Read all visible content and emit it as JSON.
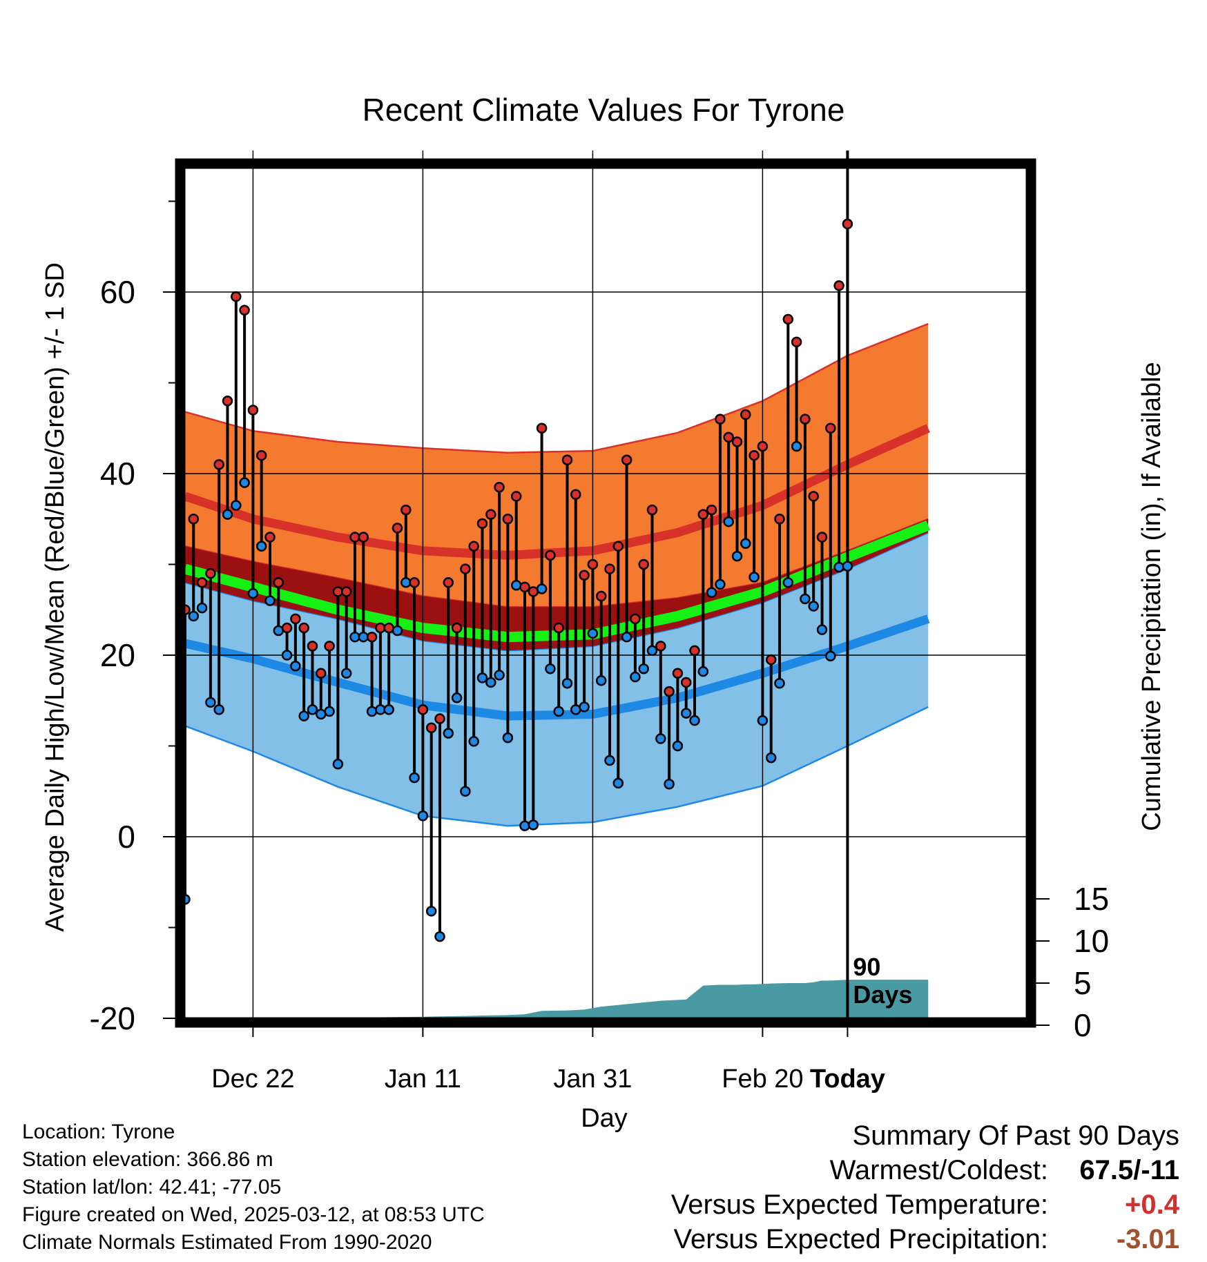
{
  "title": "Recent Climate Values For Tyrone",
  "chart_data": {
    "type": "line",
    "title": "Recent Climate Values For Tyrone",
    "xlabel": "Day",
    "ylabel": "Average Daily High/Low/Mean (Red/Blue/Green) +/- 1 SD",
    "y2label": "Cumulative Precipitation (in), If Available",
    "xlim_days": [
      -78,
      9.5
    ],
    "ylim": [
      -20,
      72
    ],
    "y2lim": [
      0,
      75
    ],
    "x_ticks": [
      {
        "day": -70,
        "label": "Dec 22"
      },
      {
        "day": -50,
        "label": "Jan 11"
      },
      {
        "day": -30,
        "label": "Jan 31"
      },
      {
        "day": -10,
        "label": "Feb 20"
      },
      {
        "day": 0,
        "label": "Today"
      }
    ],
    "y_ticks": [
      -20,
      0,
      20,
      40,
      60
    ],
    "y2_ticks": [
      0,
      5,
      10,
      15
    ],
    "today_marker": {
      "day": 0,
      "label_line1": "90",
      "label_line2": "Days"
    },
    "normals": {
      "days": [
        -78,
        -70,
        -60,
        -50,
        -40,
        -30,
        -20,
        -10,
        0,
        9.5
      ],
      "high_mean": [
        37.5,
        35,
        33,
        31.5,
        31,
        31.5,
        33.5,
        36.5,
        41,
        45
      ],
      "high_upper": [
        46.8,
        44.7,
        43.5,
        42.8,
        42.3,
        42.5,
        44.5,
        48,
        53,
        56.5
      ],
      "high_lower": [
        32,
        30.3,
        28.5,
        26.5,
        25.3,
        25.3,
        26.3,
        28,
        31.5,
        35
      ],
      "low_mean": [
        21.3,
        19.6,
        17,
        14.5,
        13.3,
        13.5,
        15.3,
        18,
        21,
        24
      ],
      "low_upper": [
        28,
        26,
        24,
        21.6,
        20.5,
        21,
        23,
        25.8,
        29.5,
        33.5
      ],
      "low_lower": [
        12.2,
        9.4,
        5.5,
        2.3,
        1.2,
        1.6,
        3.3,
        5.6,
        10,
        14.3
      ],
      "mean": [
        29.5,
        27.5,
        25,
        23,
        22,
        22.3,
        24.3,
        27,
        30.8,
        34.3
      ]
    },
    "series": [
      {
        "name": "High",
        "color": "#d8312a",
        "values": [
          31,
          22,
          30,
          34,
          42,
          48,
          38,
          34,
          29,
          24,
          13,
          25,
          35,
          28,
          29,
          41,
          48,
          59.5,
          58,
          47,
          42,
          33,
          28,
          23,
          24,
          23,
          21,
          18,
          21,
          27,
          27,
          33,
          33,
          22,
          23,
          23,
          34,
          36,
          28,
          14,
          12,
          13,
          28,
          23,
          29.5,
          32,
          34.5,
          35.5,
          38.5,
          35,
          37.5,
          27.5,
          27,
          45,
          31,
          23,
          41.5,
          37.7,
          28.8,
          30,
          26.5,
          29.5,
          32,
          41.5,
          24,
          30,
          36,
          21,
          16,
          18,
          17,
          20.5,
          35.5,
          36,
          46,
          44,
          43.5,
          46.5,
          42,
          43,
          19.5,
          35,
          57,
          54.5,
          46,
          37.5,
          33,
          45,
          60.7,
          67.5
        ]
      },
      {
        "name": "Low",
        "color": "#1e88e5",
        "values": [
          18,
          9,
          6.3,
          21.5,
          33,
          33.5,
          29,
          27.7,
          23.8,
          9,
          -6.5,
          -6.9,
          24.3,
          25.2,
          14.8,
          14,
          35.5,
          36.5,
          39,
          26.8,
          32,
          26,
          22.7,
          20,
          18.8,
          13.3,
          14,
          13.5,
          13.8,
          8,
          18,
          22,
          22,
          13.8,
          14,
          14,
          22.7,
          28,
          6.5,
          2.3,
          -8.2,
          -11,
          11.4,
          15.3,
          5,
          10.5,
          17.5,
          17,
          17.8,
          10.9,
          27.7,
          1.2,
          1.3,
          27.3,
          18.5,
          13.8,
          16.9,
          14,
          14.3,
          22.4,
          17.2,
          8.4,
          5.9,
          22,
          17.6,
          18.5,
          20.5,
          10.8,
          5.8,
          10,
          13.6,
          12.8,
          18.2,
          26.9,
          27.8,
          34.7,
          30.9,
          32.3,
          28.6,
          12.8,
          8.7,
          16.9,
          28,
          43,
          26.2,
          25.4,
          22.8,
          19.9,
          29.7,
          29.8
        ]
      }
    ],
    "precip_cumulative": {
      "days": [
        -78,
        -73,
        -72,
        -70,
        -68,
        -65,
        -63,
        -61,
        -58,
        -54,
        -50,
        -48,
        -45,
        -43,
        -40,
        -38,
        -36,
        -33,
        -32,
        -31,
        -29,
        -27,
        -26,
        -25,
        -24,
        -23,
        -22,
        -20,
        -19,
        -17,
        -16,
        -15,
        -14,
        -13,
        -12,
        -11,
        -10,
        -9,
        -7,
        -5,
        -4,
        -3,
        -2,
        -1,
        0,
        9.5
      ],
      "values": [
        0,
        0,
        0.2,
        0.4,
        0.5,
        0.6,
        0.8,
        0.85,
        0.9,
        0.95,
        1.0,
        1.05,
        1.1,
        1.15,
        1.2,
        1.3,
        1.7,
        1.75,
        1.8,
        1.85,
        2.2,
        2.4,
        2.5,
        2.6,
        2.7,
        2.8,
        2.9,
        3.0,
        3.05,
        4.7,
        4.75,
        4.8,
        4.8,
        4.8,
        4.85,
        4.85,
        4.9,
        4.95,
        5.0,
        5.0,
        5.1,
        5.3,
        5.3,
        5.35,
        5.4,
        5.4
      ]
    }
  },
  "info": {
    "location": "Location: Tyrone",
    "elevation": "Station elevation: 366.86 m",
    "latlon": "Station lat/lon: 42.41; -77.05",
    "created": "Figure created on Wed, 2025-03-12, at 08:53 UTC",
    "normals": "Climate Normals Estimated From 1990-2020"
  },
  "summary": {
    "heading": "Summary Of Past 90 Days",
    "warmest_label": "Warmest/Coldest:",
    "warmest_value": "67.5/-11",
    "temp_label": "Versus Expected Temperature:",
    "temp_value": "+0.4",
    "temp_color": "#d32f2f",
    "precip_label": "Versus Expected Precipitation:",
    "precip_value": "-3.01",
    "precip_color": "#a0522d"
  },
  "colors": {
    "high_band": "#f47a30",
    "high_line": "#d8312a",
    "mean_band": "#9b1111",
    "mean_line": "#15f015",
    "low_band": "#82c0e8",
    "low_line": "#1e88e5",
    "precip": "#4a9aa3"
  }
}
